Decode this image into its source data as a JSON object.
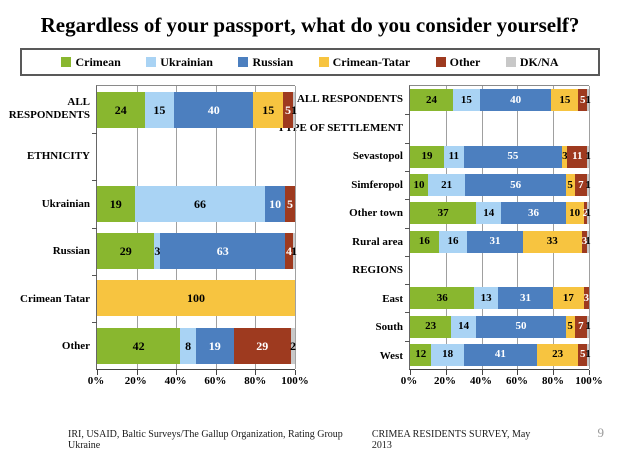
{
  "title": "Regardless of your passport, what do you consider yourself?",
  "legend": [
    {
      "label": "Crimean",
      "color": "#89B72F",
      "text_color": "#000000"
    },
    {
      "label": "Ukrainian",
      "color": "#A9D3F4",
      "text_color": "#000000"
    },
    {
      "label": "Russian",
      "color": "#4C7FBF",
      "text_color": "#FFFFFF"
    },
    {
      "label": "Crimean-Tatar",
      "color": "#F7C440",
      "text_color": "#000000"
    },
    {
      "label": "Other",
      "color": "#9E3A1F",
      "text_color": "#FFFFFF"
    },
    {
      "label": "DK/NA",
      "color": "#C8C8C8",
      "text_color": "#000000"
    }
  ],
  "chart_data": [
    {
      "type": "bar",
      "orientation": "horizontal",
      "stacked": true,
      "unit": "%",
      "xlim": [
        0,
        100
      ],
      "x_tick_labels": [
        "0%",
        "20%",
        "40%",
        "60%",
        "80%",
        "100%"
      ],
      "series_order": [
        "Crimean",
        "Ukrainian",
        "Russian",
        "Crimean-Tatar",
        "Other",
        "DK/NA"
      ],
      "rows": [
        {
          "label": "ALL RESPONDENTS",
          "values": [
            24,
            15,
            40,
            15,
            5,
            1
          ]
        },
        {
          "label": "ETHNICITY",
          "header": true
        },
        {
          "label": "Ukrainian",
          "values": [
            19,
            66,
            10,
            0,
            5,
            0
          ]
        },
        {
          "label": "Russian",
          "values": [
            29,
            3,
            63,
            0,
            4,
            1
          ]
        },
        {
          "label": "Crimean Tatar",
          "values": [
            0,
            0,
            0,
            100,
            0,
            0
          ]
        },
        {
          "label": "Other",
          "values": [
            42,
            8,
            19,
            0,
            29,
            2
          ]
        }
      ]
    },
    {
      "type": "bar",
      "orientation": "horizontal",
      "stacked": true,
      "unit": "%",
      "xlim": [
        0,
        100
      ],
      "x_tick_labels": [
        "0%",
        "20%",
        "40%",
        "60%",
        "80%",
        "100%"
      ],
      "series_order": [
        "Crimean",
        "Ukrainian",
        "Russian",
        "Crimean-Tatar",
        "Other",
        "DK/NA"
      ],
      "rows": [
        {
          "label": "ALL RESPONDENTS",
          "values": [
            24,
            15,
            40,
            15,
            5,
            1
          ]
        },
        {
          "label": "TYPE OF SETTLEMENT",
          "header": true
        },
        {
          "label": "Sevastopol",
          "values": [
            19,
            11,
            55,
            3,
            11,
            1
          ]
        },
        {
          "label": "Simferopol",
          "values": [
            10,
            21,
            56,
            5,
            7,
            1
          ]
        },
        {
          "label": "Other town",
          "values": [
            37,
            14,
            36,
            10,
            2,
            1
          ]
        },
        {
          "label": "Rural area",
          "values": [
            16,
            16,
            31,
            33,
            3,
            1
          ]
        },
        {
          "label": "REGIONS",
          "header": true
        },
        {
          "label": "East",
          "values": [
            36,
            13,
            31,
            17,
            3,
            0
          ]
        },
        {
          "label": "South",
          "values": [
            23,
            14,
            50,
            5,
            7,
            1
          ]
        },
        {
          "label": "West",
          "values": [
            12,
            18,
            41,
            23,
            5,
            1
          ]
        }
      ]
    }
  ],
  "footer": {
    "source": "IRI, USAID,  Baltic Surveys/The Gallup Organization, Rating Group Ukraine",
    "survey": "CRIMEA RESIDENTS SURVEY, May 2013",
    "page_number": "9"
  }
}
